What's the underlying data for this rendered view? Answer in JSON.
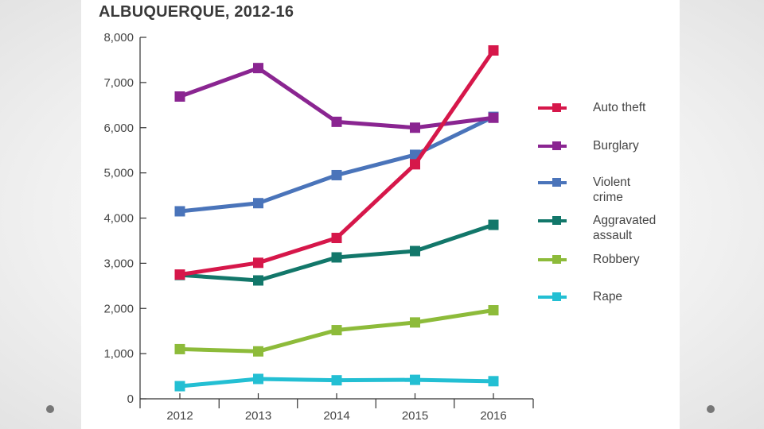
{
  "chart_data": {
    "type": "line",
    "title": "ALBUQUERQUE, 2012-16",
    "x": [
      "2012",
      "2013",
      "2014",
      "2015",
      "2016"
    ],
    "ylim": [
      0,
      8000
    ],
    "y_ticks": [
      "0",
      "1,000",
      "2,000",
      "3,000",
      "4,000",
      "5,000",
      "6,000",
      "7,000",
      "8,000"
    ],
    "grid": false,
    "legend_position": "right",
    "series": [
      {
        "name": "Auto theft",
        "color": "#d6174a",
        "values": [
          2750,
          3010,
          3560,
          5190,
          7710
        ]
      },
      {
        "name": "Burglary",
        "color": "#8a2591",
        "values": [
          6690,
          7320,
          6130,
          6000,
          6220
        ]
      },
      {
        "name": "Violent\ncrime",
        "color": "#4a74ba",
        "values": [
          4150,
          4330,
          4950,
          5400,
          6240
        ]
      },
      {
        "name": "Aggravated\nassault",
        "color": "#12776a",
        "values": [
          2740,
          2620,
          3130,
          3270,
          3850
        ]
      },
      {
        "name": "Robbery",
        "color": "#8dbb3a",
        "values": [
          1100,
          1050,
          1520,
          1690,
          1960
        ]
      },
      {
        "name": "Rape",
        "color": "#23bfd3",
        "values": [
          280,
          440,
          410,
          420,
          390
        ]
      }
    ]
  }
}
